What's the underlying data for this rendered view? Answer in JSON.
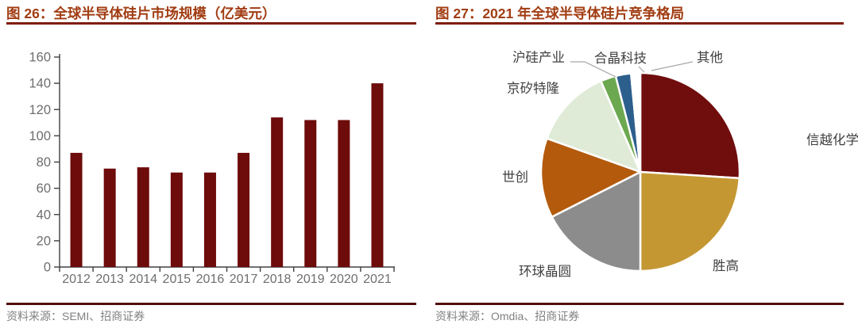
{
  "chart_data": [
    {
      "type": "bar",
      "figure_label": "图 26：全球半导体硅片市场规模（亿美元）",
      "title": "全球半导体硅片市场规模（亿美元）",
      "categories": [
        "2012",
        "2013",
        "2014",
        "2015",
        "2016",
        "2017",
        "2018",
        "2019",
        "2020",
        "2021"
      ],
      "values": [
        87,
        75,
        76,
        72,
        72,
        87,
        114,
        112,
        112,
        140
      ],
      "xlabel": "",
      "ylabel": "",
      "ylim": [
        0,
        160
      ],
      "ytick_step": 20,
      "grid": "off",
      "legend_position": "none",
      "bar_color": "#6E0B0B",
      "axis_color": "#404040",
      "tick_label_color": "#6E6E6E",
      "source": "资料来源：SEMI、招商证券"
    },
    {
      "type": "pie",
      "figure_label": "图 27：2021 年全球半导体硅片竞争格局",
      "title": "2021 年全球半导体硅片竞争格局",
      "start_angle_deg": 0,
      "direction": "clockwise",
      "grid": "off",
      "legend_position": "none",
      "labels_position": "outside",
      "slices": [
        {
          "label": "信越化学",
          "value": 26,
          "color": "#700D0D"
        },
        {
          "label": "胜高",
          "value": 24,
          "color": "#C49733"
        },
        {
          "label": "环球晶圆",
          "value": 17.5,
          "color": "#8C8C8C"
        },
        {
          "label": "世创",
          "value": 13,
          "color": "#B35A0C"
        },
        {
          "label": "京矽特隆",
          "value": 13,
          "color": "#DFEBD7"
        },
        {
          "label": "沪硅产业",
          "value": 2.5,
          "color": "#6CA84F"
        },
        {
          "label": "合晶科技",
          "value": 2.5,
          "color": "#2D5F8D"
        },
        {
          "label": "其他",
          "value": 1.5,
          "color": "#FFFFFF"
        }
      ],
      "label_text_color": "#3F3F3F",
      "leader_line_color": "#A6A6A6",
      "source": "资料来源：Omdia、招商证券"
    }
  ],
  "colors": {
    "figure_title": "#A13C12",
    "title_underline": "#7E1D0B",
    "source_rule": "#520F0F",
    "source_text": "#818181",
    "bar_maroon": "#6E0B0B"
  }
}
